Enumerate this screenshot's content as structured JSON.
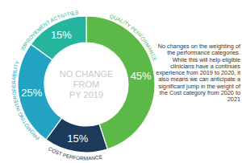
{
  "chart_data": {
    "type": "pie",
    "title": [
      "NO CHANGE",
      "FROM",
      "PY 2019"
    ],
    "categories": [
      "QUALITY PERFORMANCE",
      "COST PERFORMANCE",
      "PROMOTING INTEROPERABILITY",
      "IMPROVEMENT ACTIVITIES"
    ],
    "values": [
      45,
      15,
      25,
      15
    ],
    "value_labels": [
      "45%",
      "15%",
      "25%",
      "15%"
    ],
    "colors": [
      "#5cb947",
      "#1b3a5c",
      "#22a3c4",
      "#25b59e"
    ],
    "data_labels": true,
    "annotations": [
      "No changes on the weighting of the performance categories. While this will help eligible clinicians have a continues experience from 2019 to 2020, it also means we can anticipate a significant jump in the weight of the Cost category from 2020 to 2021"
    ]
  }
}
